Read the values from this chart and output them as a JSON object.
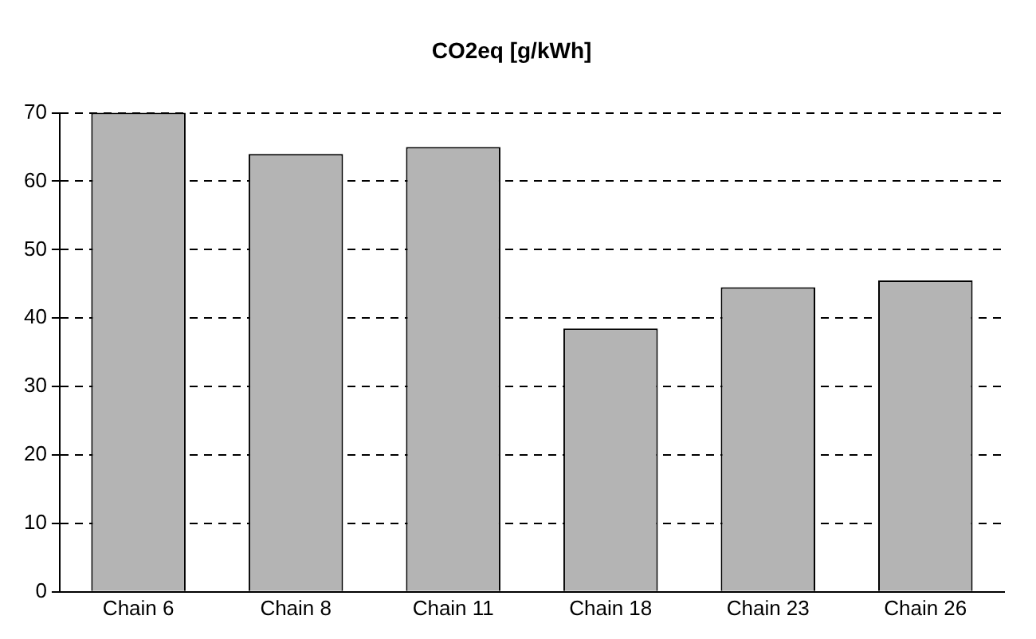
{
  "chart_data": {
    "type": "bar",
    "title": "CO2eq [g/kWh]",
    "categories": [
      "Chain 6",
      "Chain 8",
      "Chain 11",
      "Chain 18",
      "Chain 23",
      "Chain 26"
    ],
    "values": [
      70,
      64,
      65,
      38.5,
      44.5,
      45.5
    ],
    "color": "#b4b4b4",
    "ylim": [
      0,
      70
    ],
    "yticks": [
      0,
      10,
      20,
      30,
      40,
      50,
      60,
      70
    ],
    "grid": "y",
    "legend": false
  }
}
